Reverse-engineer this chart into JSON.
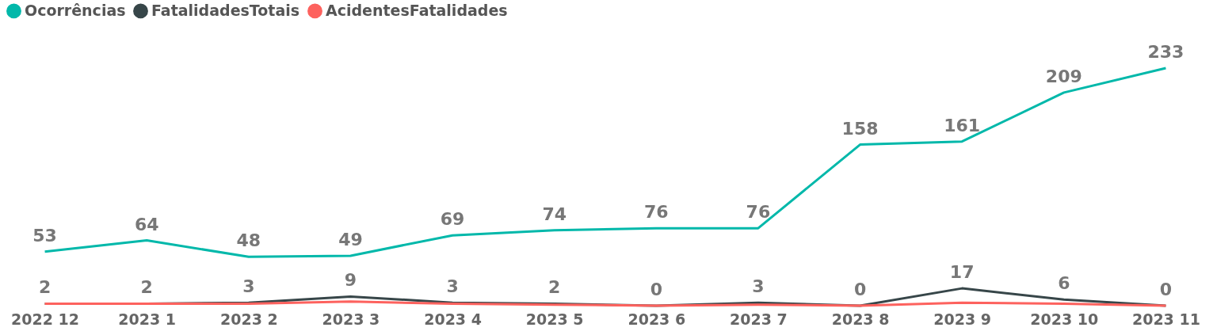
{
  "chart_data": {
    "type": "line",
    "legend": "top left",
    "categories": [
      "2022 12",
      "2023 1",
      "2023 2",
      "2023 3",
      "2023 4",
      "2023 5",
      "2023 6",
      "2023 7",
      "2023 8",
      "2023 9",
      "2023 10",
      "2023 11"
    ],
    "series": [
      {
        "name": "Ocorrências",
        "color": "#01b8aa",
        "values": [
          53,
          64,
          48,
          49,
          69,
          74,
          76,
          76,
          158,
          161,
          209,
          233
        ],
        "value_labels": [
          "53",
          "64",
          "48",
          "49",
          "69",
          "74",
          "76",
          "76",
          "158",
          "161",
          "209",
          "233"
        ]
      },
      {
        "name": "FatalidadesTotais",
        "color": "#374649",
        "values": [
          2,
          2,
          3,
          9,
          3,
          2,
          0,
          3,
          0,
          17,
          6,
          0
        ],
        "value_labels": [
          "2",
          "2",
          "3",
          "9",
          "3",
          "2",
          "0",
          "3",
          "0",
          "17",
          "6",
          "0"
        ]
      },
      {
        "name": "AcidentesFatalidades",
        "color": "#fd625e",
        "values": [
          2,
          2,
          2,
          4,
          2,
          1,
          0,
          1,
          0,
          3,
          2,
          0
        ]
      }
    ]
  }
}
